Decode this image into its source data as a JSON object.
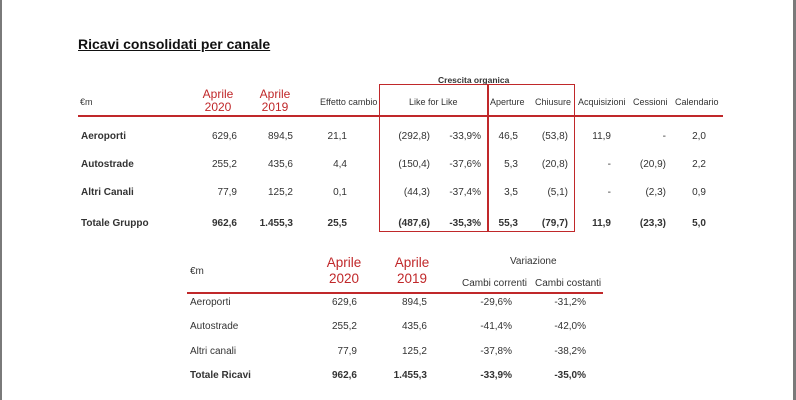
{
  "title": "Ricavi consolidati per canale",
  "table1": {
    "unit": "€m",
    "group_header": "Crescita organica",
    "col_aprile2020": [
      "Aprile",
      "2020"
    ],
    "col_aprile2019": [
      "Aprile",
      "2019"
    ],
    "col_effetto": "Effetto cambio",
    "col_lfl": "Like for Like",
    "col_aperture": "Aperture",
    "col_chiusure": "Chiusure",
    "col_acquisizioni": "Acquisizioni",
    "col_cessioni": "Cessioni",
    "col_calendario": "Calendario",
    "rows": [
      {
        "label": "Aeroporti",
        "a2020": "629,6",
        "a2019": "894,5",
        "eff": "21,1",
        "lfl": "(292,8)",
        "lflpct": "-33,9%",
        "ape": "46,5",
        "chi": "(53,8)",
        "acq": "11,9",
        "ces": "-",
        "cal": "2,0"
      },
      {
        "label": "Autostrade",
        "a2020": "255,2",
        "a2019": "435,6",
        "eff": "4,4",
        "lfl": "(150,4)",
        "lflpct": "-37,6%",
        "ape": "5,3",
        "chi": "(20,8)",
        "acq": "-",
        "ces": "(20,9)",
        "cal": "2,2"
      },
      {
        "label": "Altri Canali",
        "a2020": "77,9",
        "a2019": "125,2",
        "eff": "0,1",
        "lfl": "(44,3)",
        "lflpct": "-37,4%",
        "ape": "3,5",
        "chi": "(5,1)",
        "acq": "-",
        "ces": "(2,3)",
        "cal": "0,9"
      },
      {
        "label": "Totale Gruppo",
        "a2020": "962,6",
        "a2019": "1.455,3",
        "eff": "25,5",
        "lfl": "(487,6)",
        "lflpct": "-35,3%",
        "ape": "55,3",
        "chi": "(79,7)",
        "acq": "11,9",
        "ces": "(23,3)",
        "cal": "5,0"
      }
    ]
  },
  "table2": {
    "unit": "€m",
    "col_aprile2020": [
      "Aprile",
      "2020"
    ],
    "col_aprile2019": [
      "Aprile",
      "2019"
    ],
    "variazione": "Variazione",
    "col_correnti": "Cambi correnti",
    "col_costanti": "Cambi costanti",
    "rows": [
      {
        "label": "Aeroporti",
        "a2020": "629,6",
        "a2019": "894,5",
        "cor": "-29,6%",
        "cos": "-31,2%"
      },
      {
        "label": "Autostrade",
        "a2020": "255,2",
        "a2019": "435,6",
        "cor": "-41,4%",
        "cos": "-42,0%"
      },
      {
        "label": "Altri canali",
        "a2020": "77,9",
        "a2019": "125,2",
        "cor": "-37,8%",
        "cos": "-38,2%"
      },
      {
        "label": "Totale Ricavi",
        "a2020": "962,6",
        "a2019": "1.455,3",
        "cor": "-33,9%",
        "cos": "-35,0%"
      }
    ]
  }
}
